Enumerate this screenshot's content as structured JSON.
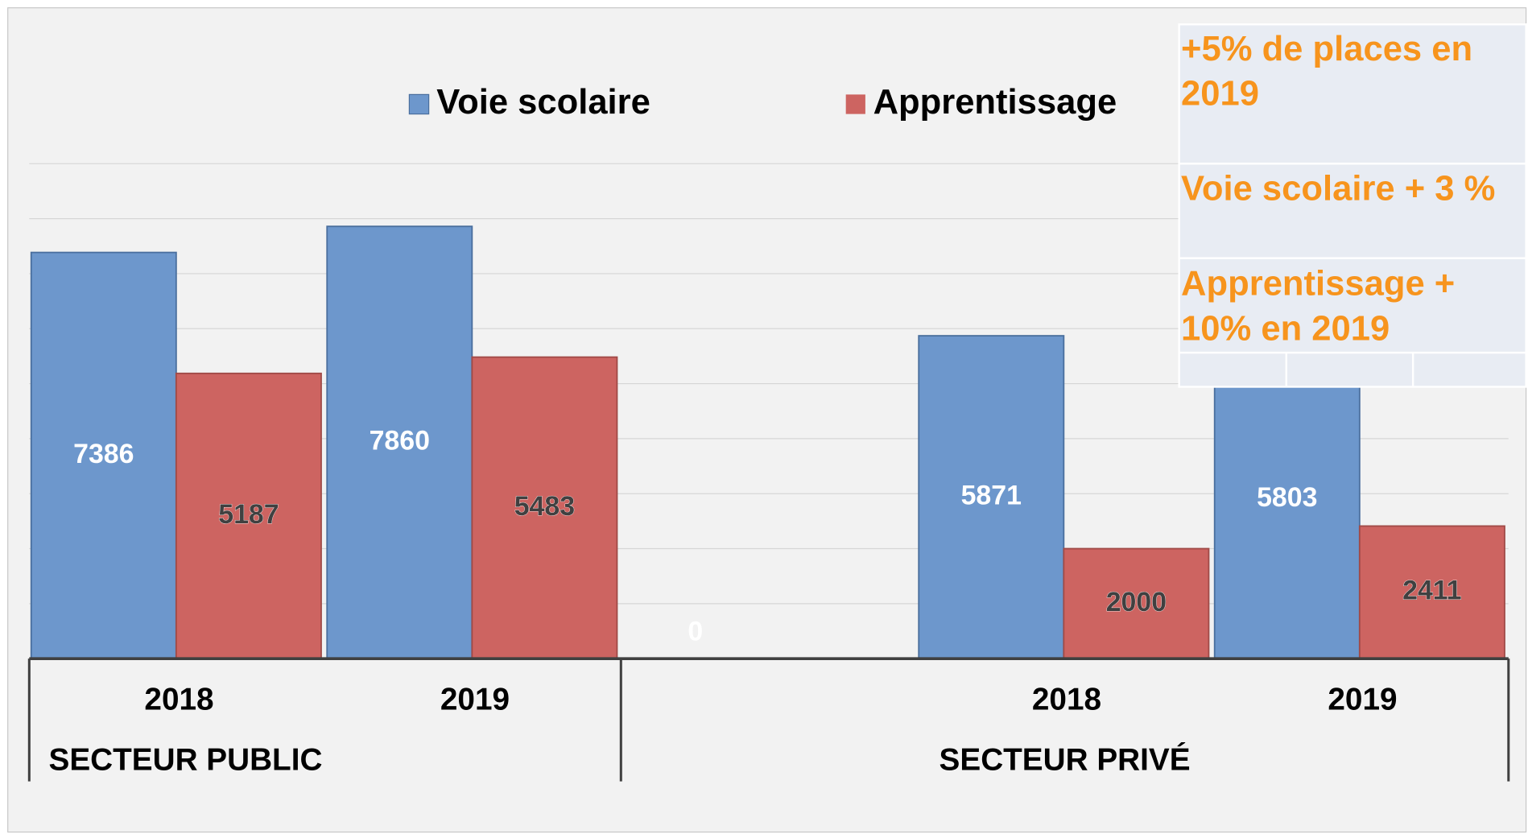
{
  "chart_data": {
    "type": "bar",
    "categories": [
      "2018",
      "2019",
      null,
      "2018",
      "2019"
    ],
    "groups": [
      "SECTEUR PUBLIC",
      "SECTEUR PRIVÉ"
    ],
    "series": [
      {
        "name": "Voie scolaire",
        "color": "#6d97cc",
        "values": [
          7386,
          7860,
          0,
          5871,
          5803
        ]
      },
      {
        "name": "Apprentissage",
        "color": "#cd6461",
        "values": [
          5187,
          5483,
          null,
          2000,
          2411
        ]
      }
    ],
    "ylim": [
      0,
      9000
    ],
    "yticks": [
      0,
      1000,
      2000,
      3000,
      4000,
      5000,
      6000,
      7000,
      8000,
      9000
    ],
    "grid": true,
    "annotations": [
      "+5% de places en 2019",
      "Voie scolaire + 3 %",
      "Apprentissage + 10% en 2019"
    ]
  }
}
